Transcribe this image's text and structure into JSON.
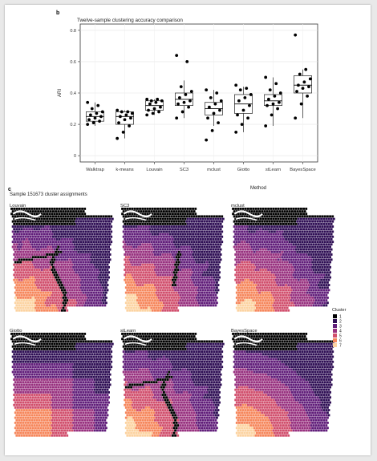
{
  "panel_b": {
    "letter": "b",
    "title": "Twelve-sample clustering accuracy comparison",
    "xlabel": "Method",
    "ylabel": "ARI"
  },
  "panel_c": {
    "letter": "c",
    "title": "Sample 151673 cluster assignments",
    "legend_title": "Cluster",
    "legend_labels": [
      "1",
      "2",
      "3",
      "4",
      "5",
      "6",
      "7"
    ],
    "palette": [
      "#000000",
      "#2f0f55",
      "#611e7a",
      "#98317f",
      "#d14f6d",
      "#f6875c",
      "#fcd3a1"
    ],
    "maps": [
      {
        "label": "Louvain"
      },
      {
        "label": "SC3"
      },
      {
        "label": "mclust"
      },
      {
        "label": "Giotto"
      },
      {
        "label": "stLearn"
      },
      {
        "label": "BayesSpace"
      }
    ]
  },
  "chart_data": {
    "type": "boxplot",
    "title": "Twelve-sample clustering accuracy comparison",
    "xlabel": "Method",
    "ylabel": "ARI",
    "ylim": [
      -0.04,
      0.84
    ],
    "yticks": [
      0,
      0.2,
      0.4,
      0.6,
      0.8
    ],
    "grid": true,
    "categories": [
      "Walktrap",
      "k-means",
      "Louvain",
      "SC3",
      "mclust",
      "Giotto",
      "stLearn",
      "BayesSpace"
    ],
    "boxes": [
      {
        "q1": 0.22,
        "median": 0.25,
        "q3": 0.28,
        "whisker_low": 0.19,
        "whisker_high": 0.34,
        "points": [
          0.2,
          0.21,
          0.22,
          0.23,
          0.24,
          0.25,
          0.26,
          0.27,
          0.28,
          0.3,
          0.32,
          0.34
        ]
      },
      {
        "q1": 0.2,
        "median": 0.25,
        "q3": 0.28,
        "whisker_low": 0.11,
        "whisker_high": 0.29,
        "points": [
          0.11,
          0.15,
          0.19,
          0.21,
          0.23,
          0.24,
          0.25,
          0.26,
          0.27,
          0.28,
          0.28,
          0.29
        ]
      },
      {
        "q1": 0.29,
        "median": 0.32,
        "q3": 0.35,
        "whisker_low": 0.26,
        "whisker_high": 0.36,
        "points": [
          0.26,
          0.27,
          0.28,
          0.29,
          0.3,
          0.31,
          0.33,
          0.34,
          0.35,
          0.35,
          0.36,
          0.36
        ]
      },
      {
        "q1": 0.32,
        "median": 0.36,
        "q3": 0.4,
        "whisker_low": 0.24,
        "whisker_high": 0.48,
        "points": [
          0.24,
          0.28,
          0.31,
          0.33,
          0.34,
          0.35,
          0.37,
          0.39,
          0.41,
          0.44,
          0.6,
          0.64
        ]
      },
      {
        "q1": 0.26,
        "median": 0.3,
        "q3": 0.34,
        "whisker_low": 0.19,
        "whisker_high": 0.42,
        "points": [
          0.1,
          0.16,
          0.21,
          0.24,
          0.27,
          0.29,
          0.31,
          0.33,
          0.35,
          0.37,
          0.4,
          0.42
        ]
      },
      {
        "q1": 0.27,
        "median": 0.33,
        "q3": 0.39,
        "whisker_low": 0.15,
        "whisker_high": 0.44,
        "points": [
          0.15,
          0.2,
          0.24,
          0.26,
          0.29,
          0.32,
          0.35,
          0.37,
          0.39,
          0.42,
          0.43,
          0.45
        ]
      },
      {
        "q1": 0.32,
        "median": 0.35,
        "q3": 0.39,
        "whisker_low": 0.19,
        "whisker_high": 0.5,
        "points": [
          0.19,
          0.26,
          0.3,
          0.32,
          0.33,
          0.34,
          0.36,
          0.38,
          0.4,
          0.42,
          0.46,
          0.5
        ]
      },
      {
        "q1": 0.4,
        "median": 0.45,
        "q3": 0.51,
        "whisker_low": 0.24,
        "whisker_high": 0.55,
        "points": [
          0.24,
          0.33,
          0.38,
          0.41,
          0.43,
          0.44,
          0.45,
          0.47,
          0.49,
          0.52,
          0.55,
          0.77
        ]
      }
    ]
  }
}
